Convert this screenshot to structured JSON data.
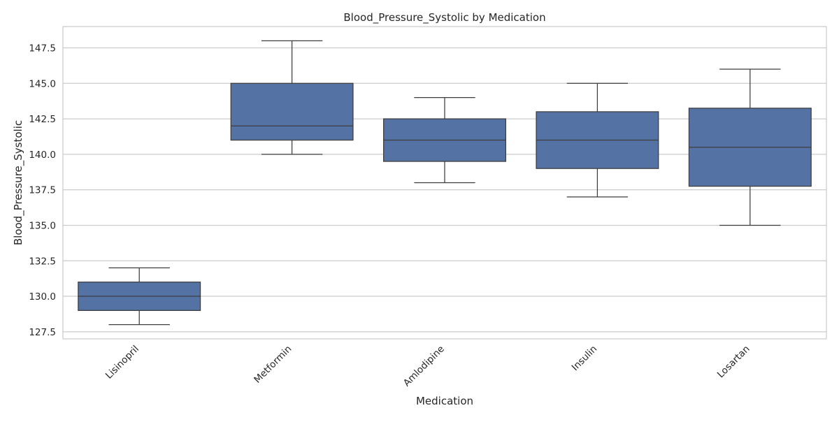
{
  "chart_data": {
    "type": "box",
    "title": "Blood_Pressure_Systolic by Medication",
    "xlabel": "Medication",
    "ylabel": "Blood_Pressure_Systolic",
    "ylim": [
      127.0,
      149.0
    ],
    "yticks": [
      127.5,
      130.0,
      132.5,
      135.0,
      137.5,
      140.0,
      142.5,
      145.0,
      147.5
    ],
    "ytick_labels": [
      "127.5",
      "130.0",
      "132.5",
      "135.0",
      "137.5",
      "140.0",
      "142.5",
      "145.0",
      "147.5"
    ],
    "grid": true,
    "categories": [
      "Lisinopril",
      "Metformin",
      "Amlodipine",
      "Insulin",
      "Losartan"
    ],
    "boxes": [
      {
        "category": "Lisinopril",
        "whisker_low": 128.0,
        "q1": 129.0,
        "median": 130.0,
        "q3": 131.0,
        "whisker_high": 132.0
      },
      {
        "category": "Metformin",
        "whisker_low": 140.0,
        "q1": 141.0,
        "median": 142.0,
        "q3": 145.0,
        "whisker_high": 148.0
      },
      {
        "category": "Amlodipine",
        "whisker_low": 138.0,
        "q1": 139.5,
        "median": 141.0,
        "q3": 142.5,
        "whisker_high": 144.0
      },
      {
        "category": "Insulin",
        "whisker_low": 137.0,
        "q1": 139.0,
        "median": 141.0,
        "q3": 143.0,
        "whisker_high": 145.0
      },
      {
        "category": "Losartan",
        "whisker_low": 135.0,
        "q1": 137.75,
        "median": 140.5,
        "q3": 143.25,
        "whisker_high": 146.0
      }
    ],
    "colors": {
      "box_fill": "#5572a4",
      "line": "#3d3d3d",
      "grid": "#cccccc",
      "frame": "#cccccc"
    }
  }
}
